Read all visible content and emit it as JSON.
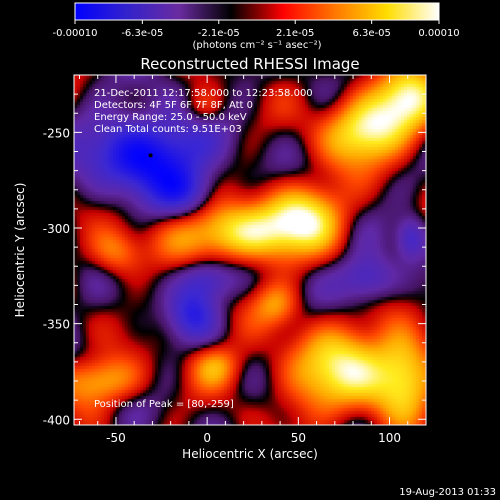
{
  "colorbar": {
    "min_label": "-0.00010",
    "tick_labels": [
      "-0.00010",
      "-6.3e-05",
      "-2.1e-05",
      "2.1e-05",
      "6.3e-05",
      "0.00010"
    ],
    "tick_values": [
      -0.0001,
      -6.3e-05,
      -2.1e-05,
      2.1e-05,
      6.3e-05,
      0.0001
    ],
    "unit_label": "(photons cm⁻² s⁻¹ asec⁻²)",
    "colors": [
      "#0000ff",
      "#3322cc",
      "#6a2ba0",
      "#000000",
      "#ff0000",
      "#ff7700",
      "#ffdd00",
      "#ffffff"
    ]
  },
  "chart_data": {
    "type": "heatmap",
    "title": "Reconstructed RHESSI Image",
    "xlabel": "Heliocentric X (arcsec)",
    "ylabel": "Heliocentric Y (arcsec)",
    "xlim": [
      -73,
      120
    ],
    "ylim": [
      -403,
      -220
    ],
    "xticks": [
      -50,
      0,
      50,
      100
    ],
    "xtick_labels": [
      "-50",
      "0",
      "50",
      "100"
    ],
    "yticks": [
      -250,
      -300,
      -350,
      -400
    ],
    "ytick_labels": [
      "-250",
      "-300",
      "-350",
      "-400"
    ],
    "annotations": {
      "time_range": "21-Dec-2011 12:17:58.000 to 12:23:58.000",
      "detectors": "Detectors: 4F 5F 6F 7F 8F, Att 0",
      "energy": "Energy Range: 25.0 - 50.0 keV",
      "clean": "Clean     Total counts: 9.51E+03",
      "peak": "Position of Peak = [80,-259]"
    },
    "marker": {
      "x": -31,
      "y": -262
    },
    "sources": [
      {
        "x": 88,
        "y": -248,
        "sx": 17,
        "sy": 13,
        "amp": 1.0
      },
      {
        "x": 112,
        "y": -232,
        "sx": 12,
        "sy": 12,
        "amp": 0.8
      },
      {
        "x": 18,
        "y": -303,
        "sx": 26,
        "sy": 11,
        "amp": 0.95
      },
      {
        "x": 54,
        "y": -292,
        "sx": 16,
        "sy": 12,
        "amp": 0.75
      },
      {
        "x": 75,
        "y": -375,
        "sx": 24,
        "sy": 17,
        "amp": 0.85
      },
      {
        "x": 108,
        "y": -375,
        "sx": 11,
        "sy": 16,
        "amp": 0.7
      },
      {
        "x": -58,
        "y": -380,
        "sx": 16,
        "sy": 9,
        "amp": 0.65
      },
      {
        "x": -50,
        "y": -313,
        "sx": 10,
        "sy": 9,
        "amp": 0.55
      },
      {
        "x": 5,
        "y": -372,
        "sx": 10,
        "sy": 8,
        "amp": 0.5
      },
      {
        "x": -2,
        "y": -237,
        "sx": 8,
        "sy": 7,
        "amp": 0.35
      },
      {
        "x": 38,
        "y": -340,
        "sx": 9,
        "sy": 8,
        "amp": 0.45
      },
      {
        "x": -32,
        "y": -262,
        "sx": 22,
        "sy": 15,
        "amp": -1.0
      },
      {
        "x": -1,
        "y": -327,
        "sx": 11,
        "sy": 8,
        "amp": -0.55
      },
      {
        "x": -8,
        "y": -345,
        "sx": 9,
        "sy": 9,
        "amp": -0.5
      },
      {
        "x": 88,
        "y": -327,
        "sx": 11,
        "sy": 9,
        "amp": -0.6
      },
      {
        "x": 112,
        "y": -305,
        "sx": 6,
        "sy": 8,
        "amp": -0.55
      },
      {
        "x": -10,
        "y": -282,
        "sx": 12,
        "sy": 9,
        "amp": -0.4
      }
    ]
  },
  "footer": {
    "date": "19-Aug-2013 01:33"
  }
}
